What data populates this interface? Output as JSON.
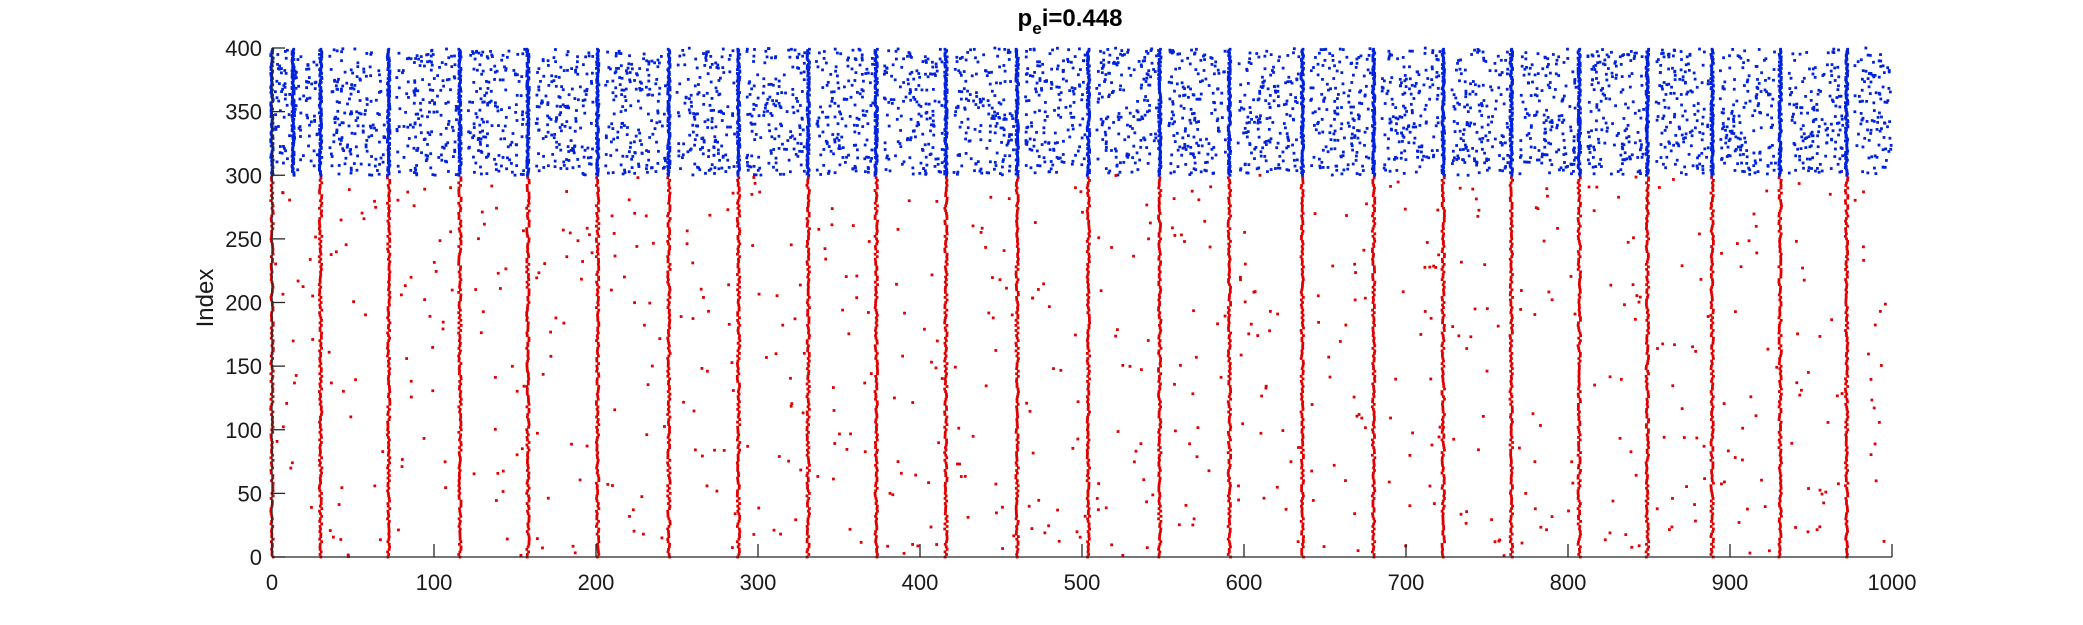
{
  "chart_data": {
    "type": "scatter",
    "title_main": "p",
    "title_sub": "e",
    "title_rest": "i=0.448",
    "xlabel": "",
    "ylabel": "Index",
    "xlim": [
      0,
      1000
    ],
    "ylim": [
      0,
      400
    ],
    "xticks": [
      0,
      100,
      200,
      300,
      400,
      500,
      600,
      700,
      800,
      900,
      1000
    ],
    "yticks": [
      0,
      50,
      100,
      150,
      200,
      250,
      300,
      350,
      400
    ],
    "grid": false,
    "legend": "none",
    "colors": {
      "excitatory": "#e00000",
      "inhibitory": "#0022dd",
      "axis": "#262626"
    },
    "populations": [
      {
        "index_range": [
          0,
          300
        ],
        "color_key": "excitatory"
      },
      {
        "index_range": [
          300,
          400
        ],
        "color_key": "inhibitory"
      }
    ],
    "synchronous_burst_times": [
      0,
      30,
      72,
      116,
      158,
      201,
      245,
      288,
      331,
      373,
      416,
      460,
      504,
      548,
      591,
      636,
      680,
      723,
      765,
      807,
      849,
      889,
      931,
      972
    ],
    "inhibitory_only_burst_times": [
      13
    ],
    "sparse_firing_windows": [
      [
        2,
        28
      ],
      [
        35,
        70
      ],
      [
        77,
        114
      ],
      [
        121,
        156
      ],
      [
        163,
        199
      ],
      [
        206,
        243
      ],
      [
        250,
        286
      ],
      [
        293,
        329
      ],
      [
        336,
        371
      ],
      [
        378,
        414
      ],
      [
        421,
        458
      ],
      [
        465,
        502
      ],
      [
        509,
        546
      ],
      [
        553,
        589
      ],
      [
        596,
        634
      ],
      [
        641,
        678
      ],
      [
        685,
        721
      ],
      [
        728,
        763
      ],
      [
        770,
        805
      ],
      [
        812,
        847
      ],
      [
        854,
        887
      ],
      [
        894,
        929
      ],
      [
        936,
        970
      ],
      [
        977,
        1000
      ]
    ]
  }
}
